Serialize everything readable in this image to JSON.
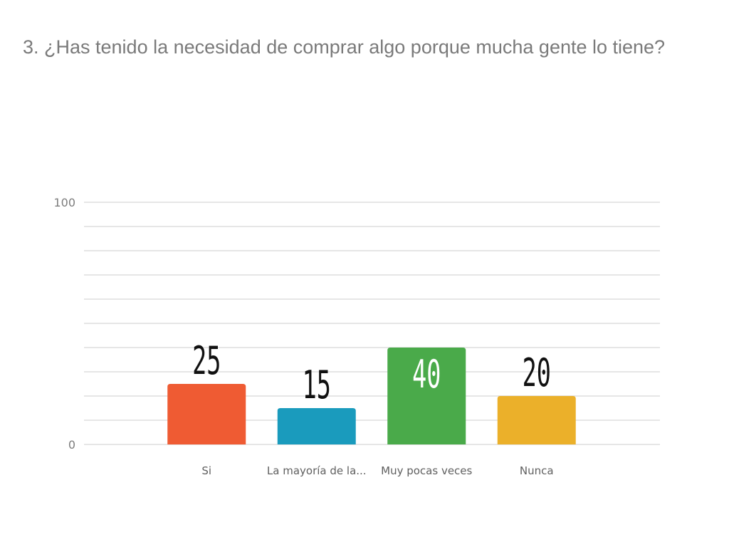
{
  "slide": {
    "title": "3. ¿Has tenido la necesidad de comprar algo porque mucha gente lo tiene?"
  },
  "chart_data": {
    "type": "bar",
    "title": "3. ¿Has tenido la necesidad de comprar algo porque mucha gente lo tiene?",
    "categories": [
      "Si",
      "La mayoría de la...",
      "Muy pocas veces",
      "Nunca"
    ],
    "values": [
      25,
      15,
      40,
      20
    ],
    "value_labels": [
      "25",
      "15",
      "40",
      "20"
    ],
    "colors": [
      "#ef5b33",
      "#1a9bbd",
      "#4aaa4a",
      "#ebb02a"
    ],
    "ylim": [
      0,
      100
    ],
    "y_tick_labels": [
      "0",
      "100"
    ],
    "gridlines": true,
    "grid_count": 10,
    "legend": "none",
    "xlabel": "",
    "ylabel": ""
  }
}
